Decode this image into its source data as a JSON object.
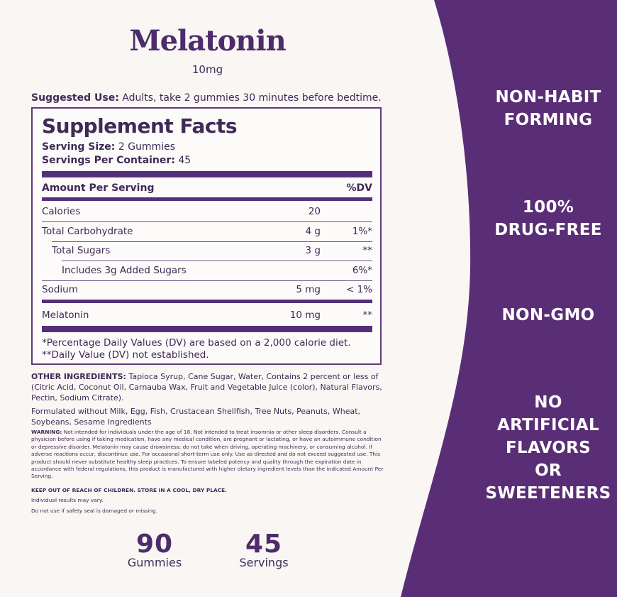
{
  "product": {
    "name": "Melatonin",
    "strength": "10mg"
  },
  "suggested_use": {
    "label": "Suggested Use:",
    "text": " Adults, take 2 gummies 30 minutes before bedtime."
  },
  "facts": {
    "title": "Supplement Facts",
    "serving_size_label": "Serving Size:",
    "serving_size_value": " 2 Gummies",
    "servings_label": "Servings Per Container:",
    "servings_value": " 45",
    "header": {
      "left": "Amount Per Serving",
      "right": "%DV"
    },
    "rows": [
      {
        "label": "Calories",
        "amount": "20",
        "dv": ""
      },
      {
        "label": "Total Carbohydrate",
        "amount": "4 g",
        "dv": "1%*"
      },
      {
        "label": "Total Sugars",
        "amount": "3 g",
        "dv": "**"
      },
      {
        "label": "Includes 3g Added Sugars",
        "amount": "",
        "dv": "6%*"
      },
      {
        "label": "Sodium",
        "amount": "5 mg",
        "dv": "< 1%"
      },
      {
        "label": "Melatonin",
        "amount": "10 mg",
        "dv": "**"
      }
    ],
    "footnote_1": "*Percentage Daily Values (DV) are based on a 2,000 calorie diet.",
    "footnote_2": "**Daily Value (DV) not established."
  },
  "other_ingredients": {
    "label": "OTHER INGREDIENTS:",
    "text": " Tapioca Syrup, Cane Sugar, Water, Contains 2 percent or less of (Citric Acid, Coconut Oil, Carnauba Wax, Fruit and Vegetable Juice (color), Natural Flavors, Pectin, Sodium Citrate)."
  },
  "formulated_without": "Formulated without Milk, Egg, Fish, Crustacean Shellfish, Tree Nuts, Peanuts, Wheat, Soybeans, Sesame Ingredients",
  "warning": {
    "label": "WARNING:",
    "text": " Not intended for individuals under the age of 18. Not intended to treat insomnia or other sleep disorders. Consult a physician before using if taking medication, have any medical condition, are pregnant or lactating, or have an autoimmune condition or depressive disorder. Melatonin may cause drowsiness; do not take when driving, operating machinery, or consuming alcohol. If adverse reactions occur, discontinue use. For occasional short-term use only. Use as directed and do not exceed suggested use. This product should never substitute healthy sleep practices. To ensure labeled potency and quality through the expiration date in accordance with federal regulations, this product is manufactured with higher dietary ingredient levels than the indicated Amount Per Serving."
  },
  "keep_out": "KEEP OUT OF REACH OF CHILDREN. STORE IN A COOL, DRY PLACE.",
  "individual_results": "Individual results may vary.",
  "seal_notice": "Do not use if safety seal is damaged or missing.",
  "counts": [
    {
      "number": "90",
      "unit": "Gummies"
    },
    {
      "number": "45",
      "unit": "Servings"
    }
  ],
  "claims": [
    {
      "line1": "NON-HABIT",
      "line2": "FORMING"
    },
    {
      "line1": "100%",
      "line2": "DRUG-FREE"
    },
    {
      "line1": "NON-GMO"
    },
    {
      "line1": "NO",
      "line2": "ARTIFICIAL",
      "line3": "FLAVORS",
      "line4": "OR",
      "line5": "SWEETENERS"
    }
  ],
  "colors": {
    "purple": "#55307a",
    "panel": "#5a2e76",
    "cream": "#f9f6f4"
  }
}
